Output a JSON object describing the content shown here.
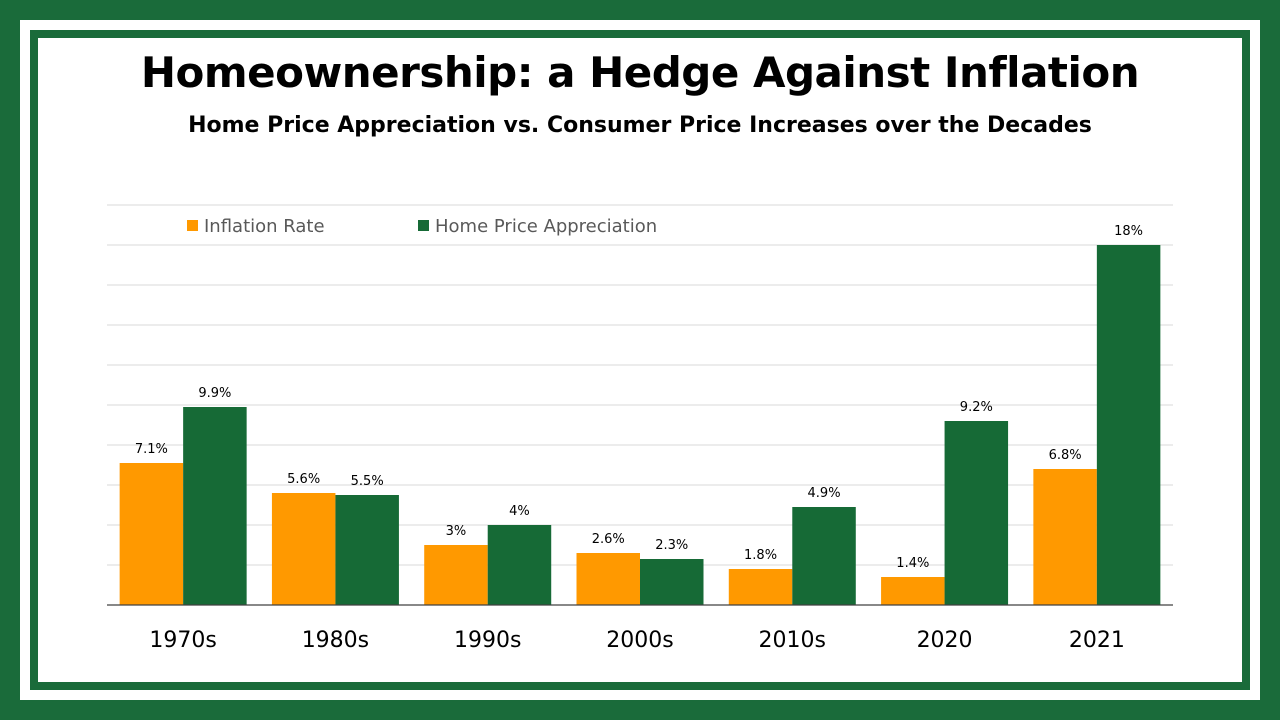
{
  "title": "Homeownership: a Hedge Against Inflation",
  "subtitle": "Home Price Appreciation vs. Consumer Price Increases over the Decades",
  "colors": {
    "frame": "#1a6b3a",
    "inflation": "#ff9900",
    "home_price": "#166a36"
  },
  "chart_data": {
    "type": "bar",
    "categories": [
      "1970s",
      "1980s",
      "1990s",
      "2000s",
      "2010s",
      "2020",
      "2021"
    ],
    "series": [
      {
        "name": "Inflation Rate",
        "values": [
          7.1,
          5.6,
          3,
          2.6,
          1.8,
          1.4,
          6.8
        ],
        "labels": [
          "7.1%",
          "5.6%",
          "3%",
          "2.6%",
          "1.8%",
          "1.4%",
          "6.8%"
        ],
        "color": "#ff9900"
      },
      {
        "name": "Home Price Appreciation",
        "values": [
          9.9,
          5.5,
          4,
          2.3,
          4.9,
          9.2,
          18
        ],
        "labels": [
          "9.9%",
          "5.5%",
          "4%",
          "2.3%",
          "4.9%",
          "9.2%",
          "18%"
        ],
        "color": "#166a36"
      }
    ],
    "ylim": [
      0,
      20
    ],
    "grid": true,
    "legend_position": "top-left",
    "title": "",
    "xlabel": "",
    "ylabel": ""
  }
}
